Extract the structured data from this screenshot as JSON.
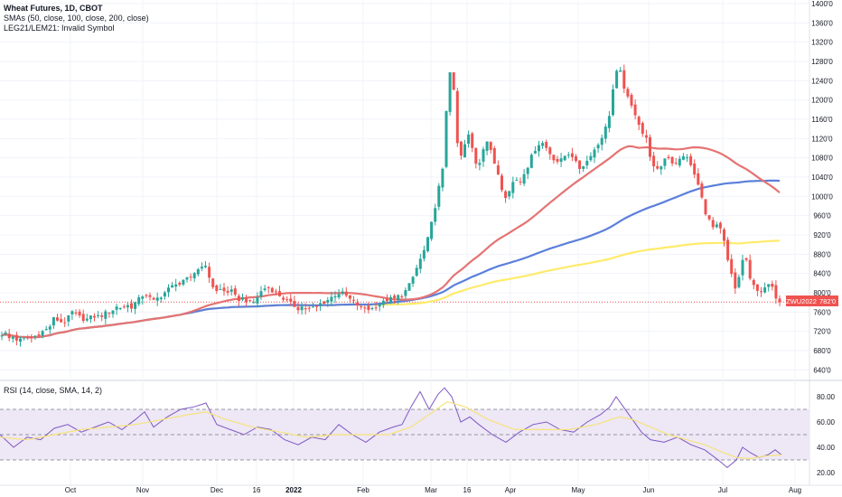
{
  "legend": {
    "title": "Wheat Futures, 1D, CBOT",
    "sma": "SMAs (50, close, 100, close, 200, close)",
    "invalid": "LEG21/LEM21: Invalid Symbol"
  },
  "rsi_legend": "RSI (14, close, SMA, 14, 2)",
  "price_tag": {
    "symbol": "ZWU2022",
    "price": "782'0"
  },
  "colors": {
    "up": "#26a69a",
    "down": "#ef5350",
    "sma50": "#e57373",
    "sma100": "#5b7fdb",
    "sma200": "#ffeb6b",
    "rsi_line": "#7e57c2",
    "rsi_sma": "#f7e37a",
    "rsi_band": "#ede7f6"
  },
  "chart_data": [
    {
      "type": "candlestick",
      "title": "Wheat Futures, 1D, CBOT",
      "ylim": [
        620,
        1400
      ],
      "y_ticks": [
        "640'0",
        "680'0",
        "720'0",
        "760'0",
        "800'0",
        "840'0",
        "880'0",
        "920'0",
        "960'0",
        "1000'0",
        "1040'0",
        "1080'0",
        "1120'0",
        "1160'0",
        "1200'0",
        "1240'0",
        "1280'0",
        "1320'0",
        "1360'0",
        "1400'0"
      ],
      "x_ticks": [
        "Oct",
        "Nov",
        "Dec",
        "16",
        "2022",
        "Feb",
        "Mar",
        "16",
        "Apr",
        "May",
        "Jun",
        "Jul",
        "Aug"
      ],
      "close_path": [
        [
          0,
          712
        ],
        [
          5,
          718
        ],
        [
          10,
          705
        ],
        [
          15,
          710
        ],
        [
          20,
          700
        ],
        [
          25,
          703
        ],
        [
          30,
          708
        ],
        [
          35,
          705
        ],
        [
          40,
          712
        ],
        [
          45,
          718
        ],
        [
          50,
          722
        ],
        [
          55,
          730
        ],
        [
          60,
          748
        ],
        [
          65,
          742
        ],
        [
          70,
          738
        ],
        [
          75,
          746
        ],
        [
          80,
          760
        ],
        [
          85,
          752
        ],
        [
          90,
          748
        ],
        [
          95,
          744
        ],
        [
          100,
          748
        ],
        [
          105,
          752
        ],
        [
          110,
          750
        ],
        [
          115,
          756
        ],
        [
          120,
          760
        ],
        [
          125,
          765
        ],
        [
          130,
          772
        ],
        [
          135,
          768
        ],
        [
          140,
          775
        ],
        [
          145,
          770
        ],
        [
          150,
          780
        ],
        [
          155,
          788
        ],
        [
          160,
          800
        ],
        [
          165,
          790
        ],
        [
          170,
          782
        ],
        [
          175,
          790
        ],
        [
          180,
          796
        ],
        [
          185,
          806
        ],
        [
          190,
          812
        ],
        [
          195,
          822
        ],
        [
          200,
          816
        ],
        [
          205,
          826
        ],
        [
          210,
          830
        ],
        [
          215,
          842
        ],
        [
          220,
          850
        ],
        [
          225,
          862
        ],
        [
          230,
          842
        ],
        [
          235,
          815
        ],
        [
          240,
          802
        ],
        [
          245,
          808
        ],
        [
          250,
          800
        ],
        [
          255,
          806
        ],
        [
          260,
          792
        ],
        [
          265,
          786
        ],
        [
          270,
          790
        ],
        [
          275,
          780
        ],
        [
          280,
          778
        ],
        [
          285,
          792
        ],
        [
          290,
          805
        ],
        [
          295,
          812
        ],
        [
          300,
          808
        ],
        [
          305,
          800
        ],
        [
          310,
          794
        ],
        [
          315,
          786
        ],
        [
          320,
          778
        ],
        [
          325,
          774
        ],
        [
          330,
          768
        ],
        [
          335,
          772
        ],
        [
          340,
          764
        ],
        [
          345,
          768
        ],
        [
          350,
          770
        ],
        [
          355,
          778
        ],
        [
          360,
          782
        ],
        [
          365,
          788
        ],
        [
          370,
          795
        ],
        [
          375,
          800
        ],
        [
          380,
          798
        ],
        [
          385,
          790
        ],
        [
          390,
          782
        ],
        [
          395,
          776
        ],
        [
          400,
          768
        ],
        [
          405,
          770
        ],
        [
          410,
          764
        ],
        [
          415,
          772
        ],
        [
          420,
          778
        ],
        [
          425,
          780
        ],
        [
          430,
          788
        ],
        [
          435,
          785
        ],
        [
          440,
          792
        ],
        [
          445,
          796
        ],
        [
          450,
          806
        ],
        [
          455,
          822
        ],
        [
          460,
          846
        ],
        [
          465,
          868
        ],
        [
          470,
          890
        ],
        [
          475,
          920
        ],
        [
          480,
          964
        ],
        [
          485,
          1012
        ],
        [
          490,
          1054
        ],
        [
          495,
          1210
        ],
        [
          500,
          1292
        ],
        [
          505,
          1120
        ],
        [
          510,
          1080
        ],
        [
          515,
          1110
        ],
        [
          520,
          1132
        ],
        [
          525,
          1072
        ],
        [
          530,
          1066
        ],
        [
          535,
          1102
        ],
        [
          540,
          1118
        ],
        [
          545,
          1078
        ],
        [
          550,
          1058
        ],
        [
          555,
          1020
        ],
        [
          560,
          1000
        ],
        [
          565,
          1014
        ],
        [
          570,
          1042
        ],
        [
          575,
          1026
        ],
        [
          580,
          1050
        ],
        [
          585,
          1066
        ],
        [
          590,
          1090
        ],
        [
          595,
          1108
        ],
        [
          600,
          1112
        ],
        [
          605,
          1100
        ],
        [
          610,
          1086
        ],
        [
          615,
          1074
        ],
        [
          620,
          1072
        ],
        [
          625,
          1084
        ],
        [
          630,
          1090
        ],
        [
          635,
          1082
        ],
        [
          640,
          1056
        ],
        [
          645,
          1064
        ],
        [
          650,
          1074
        ],
        [
          655,
          1092
        ],
        [
          660,
          1100
        ],
        [
          665,
          1120
        ],
        [
          670,
          1140
        ],
        [
          675,
          1174
        ],
        [
          680,
          1242
        ],
        [
          685,
          1270
        ],
        [
          690,
          1232
        ],
        [
          695,
          1202
        ],
        [
          700,
          1182
        ],
        [
          705,
          1166
        ],
        [
          710,
          1134
        ],
        [
          715,
          1122
        ],
        [
          720,
          1082
        ],
        [
          725,
          1050
        ],
        [
          730,
          1056
        ],
        [
          735,
          1078
        ],
        [
          740,
          1082
        ],
        [
          745,
          1068
        ],
        [
          750,
          1072
        ],
        [
          755,
          1080
        ],
        [
          760,
          1086
        ],
        [
          765,
          1060
        ],
        [
          770,
          1040
        ],
        [
          775,
          1010
        ],
        [
          780,
          972
        ],
        [
          785,
          950
        ],
        [
          790,
          932
        ],
        [
          795,
          940
        ],
        [
          800,
          920
        ],
        [
          805,
          870
        ],
        [
          810,
          834
        ],
        [
          815,
          800
        ],
        [
          820,
          858
        ],
        [
          825,
          880
        ],
        [
          830,
          826
        ],
        [
          835,
          812
        ],
        [
          840,
          806
        ],
        [
          845,
          802
        ],
        [
          850,
          818
        ],
        [
          855,
          808
        ],
        [
          860,
          788
        ],
        [
          865,
          782
        ]
      ]
    },
    {
      "type": "line",
      "title": "RSI (14, close, SMA, 14, 2)",
      "ylim": [
        15,
        90
      ],
      "y_ticks": [
        "20.00",
        "40.00",
        "60.00",
        "80.00"
      ],
      "band": [
        30,
        70
      ],
      "midline": 50,
      "series": [
        {
          "name": "RSI",
          "values": [
            [
              0,
              50
            ],
            [
              15,
              40
            ],
            [
              30,
              48
            ],
            [
              45,
              46
            ],
            [
              60,
              55
            ],
            [
              75,
              58
            ],
            [
              90,
              52
            ],
            [
              105,
              56
            ],
            [
              120,
              60
            ],
            [
              135,
              54
            ],
            [
              150,
              62
            ],
            [
              160,
              68
            ],
            [
              170,
              56
            ],
            [
              185,
              64
            ],
            [
              200,
              70
            ],
            [
              215,
              72
            ],
            [
              228,
              75
            ],
            [
              240,
              58
            ],
            [
              255,
              54
            ],
            [
              270,
              50
            ],
            [
              285,
              56
            ],
            [
              300,
              54
            ],
            [
              315,
              46
            ],
            [
              330,
              42
            ],
            [
              345,
              48
            ],
            [
              360,
              46
            ],
            [
              375,
              58
            ],
            [
              390,
              50
            ],
            [
              405,
              44
            ],
            [
              420,
              52
            ],
            [
              435,
              56
            ],
            [
              445,
              58
            ],
            [
              455,
              72
            ],
            [
              465,
              84
            ],
            [
              475,
              70
            ],
            [
              485,
              82
            ],
            [
              492,
              87
            ],
            [
              500,
              80
            ],
            [
              510,
              60
            ],
            [
              520,
              64
            ],
            [
              530,
              58
            ],
            [
              545,
              50
            ],
            [
              560,
              44
            ],
            [
              575,
              52
            ],
            [
              590,
              58
            ],
            [
              605,
              60
            ],
            [
              620,
              54
            ],
            [
              635,
              52
            ],
            [
              650,
              60
            ],
            [
              665,
              66
            ],
            [
              675,
              72
            ],
            [
              682,
              80
            ],
            [
              690,
              72
            ],
            [
              700,
              62
            ],
            [
              710,
              52
            ],
            [
              720,
              46
            ],
            [
              735,
              44
            ],
            [
              750,
              48
            ],
            [
              765,
              42
            ],
            [
              780,
              38
            ],
            [
              795,
              30
            ],
            [
              805,
              24
            ],
            [
              815,
              30
            ],
            [
              822,
              40
            ],
            [
              830,
              36
            ],
            [
              840,
              32
            ],
            [
              850,
              34
            ],
            [
              858,
              38
            ],
            [
              865,
              34
            ]
          ]
        },
        {
          "name": "RSI SMA",
          "values": [
            [
              0,
              48
            ],
            [
              30,
              46
            ],
            [
              60,
              50
            ],
            [
              90,
              54
            ],
            [
              120,
              56
            ],
            [
              150,
              58
            ],
            [
              180,
              62
            ],
            [
              210,
              66
            ],
            [
              228,
              68
            ],
            [
              250,
              62
            ],
            [
              280,
              56
            ],
            [
              310,
              52
            ],
            [
              340,
              48
            ],
            [
              370,
              50
            ],
            [
              400,
              50
            ],
            [
              430,
              50
            ],
            [
              455,
              56
            ],
            [
              475,
              66
            ],
            [
              495,
              76
            ],
            [
              515,
              72
            ],
            [
              540,
              62
            ],
            [
              570,
              54
            ],
            [
              600,
              54
            ],
            [
              630,
              54
            ],
            [
              660,
              58
            ],
            [
              685,
              64
            ],
            [
              700,
              62
            ],
            [
              720,
              56
            ],
            [
              740,
              50
            ],
            [
              760,
              46
            ],
            [
              780,
              42
            ],
            [
              800,
              36
            ],
            [
              815,
              32
            ],
            [
              830,
              31
            ],
            [
              845,
              33
            ],
            [
              865,
              34
            ]
          ]
        }
      ]
    }
  ]
}
